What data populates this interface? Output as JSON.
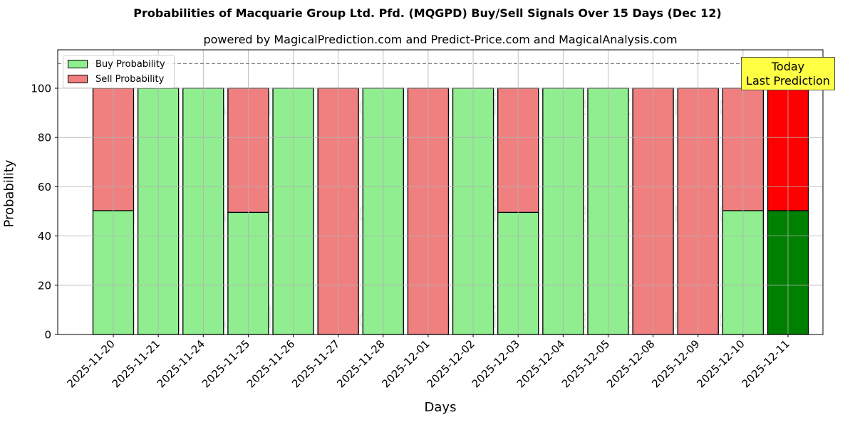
{
  "header": {
    "title": "Probabilities of Macquarie Group Ltd. Pfd. (MQGPD) Buy/Sell Signals Over 15 Days (Dec 12)",
    "subtitle": "powered by MagicalPrediction.com and Predict-Price.com and MagicalAnalysis.com"
  },
  "legend": {
    "buy_label": "Buy Probability",
    "sell_label": "Sell Probability"
  },
  "annotation": {
    "line1": "Today",
    "line2": "Last Prediction"
  },
  "watermarks": [
    "MagicalAnalysis.com",
    "MagicalPrediction.com"
  ],
  "colors": {
    "buy": "#90ee90",
    "sell": "#f08080",
    "today_buy": "#008000",
    "today_sell": "#ff0000",
    "annotation_bg": "#ffff44",
    "grid": "#b0b0b0",
    "threshold_line": "#808080"
  },
  "chart_data": {
    "type": "bar",
    "stacked": true,
    "title": "Probabilities of Macquarie Group Ltd. Pfd. (MQGPD) Buy/Sell Signals Over 15 Days (Dec 12)",
    "subtitle": "powered by MagicalPrediction.com and Predict-Price.com and MagicalAnalysis.com",
    "xlabel": "Days",
    "ylabel": "Probability",
    "ylim": [
      0,
      115.6
    ],
    "yticks": [
      0,
      20,
      40,
      60,
      80,
      100
    ],
    "grid": true,
    "legend_position": "upper left",
    "threshold_line": 110,
    "categories": [
      "2025-11-20",
      "2025-11-21",
      "2025-11-24",
      "2025-11-25",
      "2025-11-26",
      "2025-11-27",
      "2025-11-28",
      "2025-12-01",
      "2025-12-02",
      "2025-12-03",
      "2025-12-04",
      "2025-12-05",
      "2025-12-08",
      "2025-12-09",
      "2025-12-10",
      "2025-12-11"
    ],
    "series": [
      {
        "name": "Buy Probability",
        "values": [
          50.3,
          100,
          100,
          49.6,
          100,
          0,
          100,
          0,
          100,
          49.6,
          100,
          100,
          0,
          0,
          50.3,
          50.3
        ]
      },
      {
        "name": "Sell Probability",
        "values": [
          49.7,
          0,
          0,
          50.4,
          0,
          100,
          0,
          100,
          0,
          50.4,
          0,
          0,
          100,
          100,
          49.7,
          49.7
        ]
      }
    ],
    "highlight_last": {
      "label": "Today\nLast Prediction",
      "buy_color": "#008000",
      "sell_color": "#ff0000"
    }
  }
}
